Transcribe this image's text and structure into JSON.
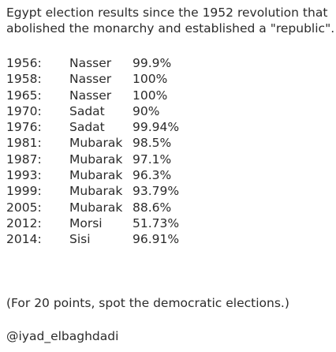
{
  "title": {
    "line1": "Egypt election results since the 1952 revolution that",
    "line2": "abolished the monarchy and established a \"republic\"."
  },
  "results": [
    {
      "year": "1956:",
      "name": "Nasser",
      "percent": "99.9%"
    },
    {
      "year": "1958:",
      "name": "Nasser",
      "percent": "100%"
    },
    {
      "year": "1965:",
      "name": "Nasser",
      "percent": "100%"
    },
    {
      "year": "1970:",
      "name": "Sadat",
      "percent": "90%"
    },
    {
      "year": "1976:",
      "name": "Sadat",
      "percent": "99.94%"
    },
    {
      "year": "1981:",
      "name": "Mubarak",
      "percent": "98.5%"
    },
    {
      "year": "1987:",
      "name": "Mubarak",
      "percent": "97.1%"
    },
    {
      "year": "1993:",
      "name": "Mubarak",
      "percent": "96.3%"
    },
    {
      "year": "1999:",
      "name": "Mubarak",
      "percent": "93.79%"
    },
    {
      "year": "2005:",
      "name": "Mubarak",
      "percent": "88.6%"
    },
    {
      "year": "2012:",
      "name": "Morsi",
      "percent": "51.73%"
    },
    {
      "year": "2014:",
      "name": "Sisi",
      "percent": "96.91%"
    }
  ],
  "note": "(For 20 points, spot the democratic elections.)",
  "handle": "@iyad_elbaghdadi",
  "colors": {
    "text": "#2b2b2b",
    "background": "#ffffff"
  }
}
